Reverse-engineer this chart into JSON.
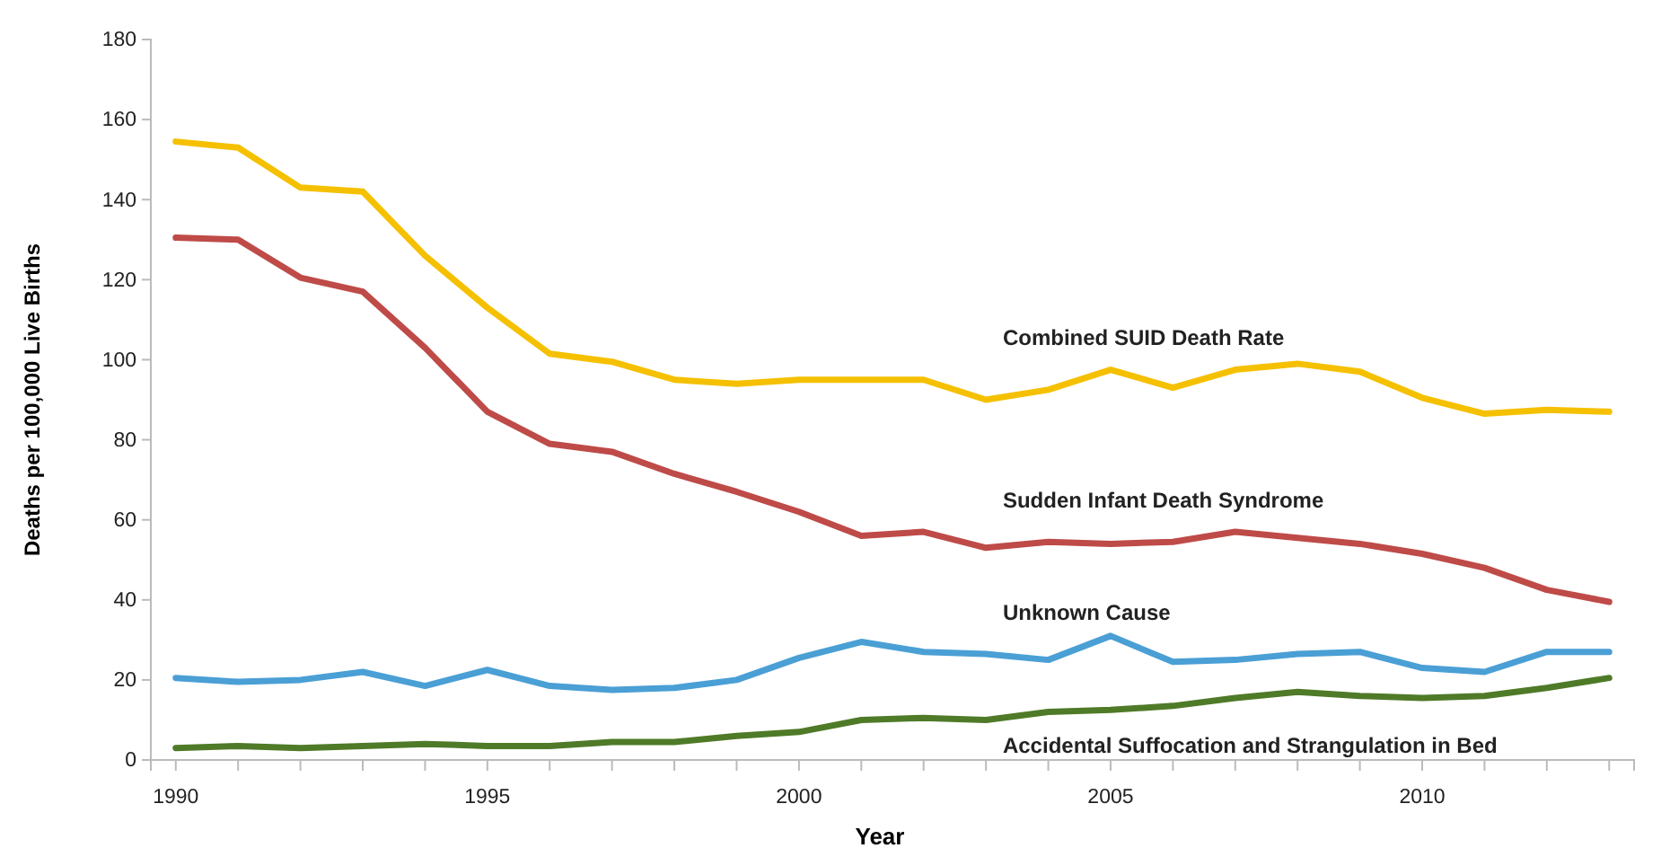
{
  "chart_data": {
    "type": "line",
    "xlabel": "Year",
    "ylabel": "Deaths per 100,000 Live Births",
    "x": [
      1990,
      1991,
      1992,
      1993,
      1994,
      1995,
      1996,
      1997,
      1998,
      1999,
      2000,
      2001,
      2002,
      2003,
      2004,
      2005,
      2006,
      2007,
      2008,
      2009,
      2010,
      2011,
      2012,
      2013
    ],
    "series": [
      {
        "name": "Combined SUID Death Rate",
        "color": "#f5c000",
        "values": [
          154.5,
          153,
          143,
          142,
          126,
          113,
          101.5,
          99.5,
          95,
          94,
          95,
          95,
          95,
          90,
          92.5,
          97.5,
          93,
          97.5,
          99,
          97,
          90.5,
          86.5,
          87.5,
          87
        ]
      },
      {
        "name": "Sudden Infant Death Syndrome",
        "color": "#be4b48",
        "values": [
          130.5,
          130,
          120.5,
          117,
          103,
          87,
          79,
          77,
          71.5,
          67,
          62,
          56,
          57,
          53,
          54.5,
          54,
          54.5,
          57,
          55.5,
          54,
          51.5,
          48,
          42.5,
          39.5
        ]
      },
      {
        "name": "Unknown Cause",
        "color": "#4a9fd5",
        "values": [
          20.5,
          19.5,
          20,
          22,
          18.5,
          22.5,
          18.5,
          17.5,
          18,
          20,
          25.5,
          29.5,
          27,
          26.5,
          25,
          31,
          24.5,
          25,
          26.5,
          27,
          23,
          22,
          27,
          27
        ]
      },
      {
        "name": "Accidental Suffocation and Strangulation in Bed",
        "color": "#4f7a28",
        "values": [
          3,
          3.5,
          3,
          3.5,
          4,
          3.5,
          3.5,
          4.5,
          4.5,
          6,
          7,
          10,
          10.5,
          10,
          12,
          12.5,
          13.5,
          15.5,
          17,
          16,
          15.5,
          16,
          18,
          20.5
        ]
      }
    ],
    "xlim": [
      1989.6,
      2013.4
    ],
    "xticks": [
      1990,
      {
        "value": 1991,
        "label": null
      },
      {
        "value": 1992,
        "label": null
      },
      {
        "value": 1993,
        "label": null
      },
      {
        "value": 1994,
        "label": null
      },
      1995,
      {
        "value": 1996,
        "label": null
      },
      {
        "value": 1997,
        "label": null
      },
      {
        "value": 1998,
        "label": null
      },
      {
        "value": 1999,
        "label": null
      },
      2000,
      {
        "value": 2001,
        "label": null
      },
      {
        "value": 2002,
        "label": null
      },
      {
        "value": 2003,
        "label": null
      },
      {
        "value": 2004,
        "label": null
      },
      2005,
      {
        "value": 2006,
        "label": null
      },
      {
        "value": 2007,
        "label": null
      },
      {
        "value": 2008,
        "label": null
      },
      {
        "value": 2009,
        "label": null
      },
      2010,
      {
        "value": 2011,
        "label": null
      },
      {
        "value": 2012,
        "label": null
      },
      {
        "value": 2013,
        "label": null
      }
    ],
    "ylim": [
      0,
      180
    ],
    "yticks": [
      0,
      20,
      40,
      60,
      80,
      100,
      120,
      140,
      160,
      180
    ],
    "grid": false,
    "legend": false,
    "marker": "none",
    "line_style": "solid"
  }
}
